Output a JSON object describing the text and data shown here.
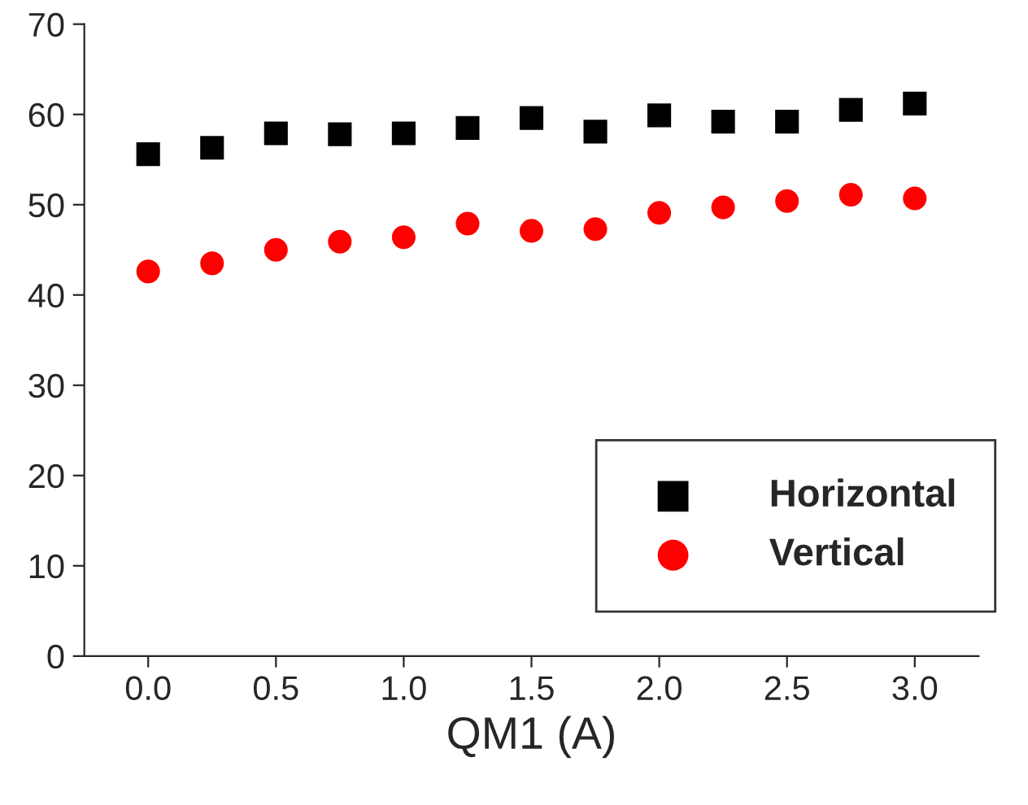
{
  "chart_data": {
    "type": "scatter",
    "xlabel": "QM1 (A)",
    "x": [
      0.0,
      0.25,
      0.5,
      0.75,
      1.0,
      1.25,
      1.5,
      1.75,
      2.0,
      2.25,
      2.5,
      2.75,
      3.0
    ],
    "series": [
      {
        "name": "Horizontal",
        "color": "#000000",
        "marker": "square",
        "values": [
          55.6,
          56.3,
          57.9,
          57.8,
          57.9,
          58.5,
          59.6,
          58.1,
          59.9,
          59.2,
          59.2,
          60.5,
          61.2
        ]
      },
      {
        "name": "Vertical",
        "color": "#ff0000",
        "marker": "circle",
        "values": [
          42.6,
          43.5,
          45.0,
          45.9,
          46.4,
          47.9,
          47.1,
          47.3,
          49.1,
          49.7,
          50.4,
          51.1,
          50.7
        ]
      }
    ],
    "xlim": [
      -0.25,
      3.25
    ],
    "ylim": [
      0,
      70
    ],
    "xticks": [
      {
        "value": 0,
        "label": "0.0"
      },
      {
        "value": 0.5,
        "label": "0.5"
      },
      {
        "value": 1,
        "label": "1.0"
      },
      {
        "value": 1.5,
        "label": "1.5"
      },
      {
        "value": 2,
        "label": "2.0"
      },
      {
        "value": 2.5,
        "label": "2.5"
      },
      {
        "value": 3,
        "label": "3.0"
      }
    ],
    "yticks": [
      0,
      10,
      20,
      30,
      40,
      50,
      60,
      70
    ],
    "grid": false,
    "legend": "bottom right"
  }
}
